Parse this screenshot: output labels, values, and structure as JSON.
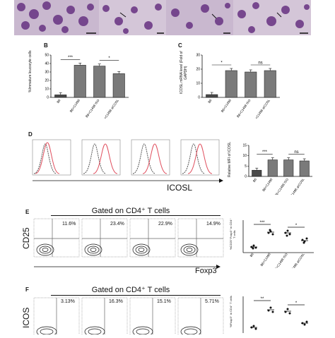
{
  "panel_letters": {
    "B": "B",
    "C": "C",
    "D": "D",
    "E": "E",
    "F": "F"
  },
  "groups": [
    "B6",
    "B6+C1498",
    "B6+C1498 ISO",
    "B6+C1498 aICOSL"
  ],
  "colors": {
    "micro_bg": "#c9b8cf",
    "micro_cell": "#6d3a86",
    "bar_dark": "#4a4a4a",
    "bar_checker": "#7a7a7a",
    "histo_grey": "#555555",
    "histo_red": "#e0505f"
  },
  "panel_B": {
    "ylabel": "%Immature leucocyte cells",
    "yticks": [
      "0",
      "10",
      "20",
      "30",
      "40",
      "50"
    ],
    "sig": [
      "***",
      "*"
    ]
  },
  "panel_C": {
    "ylabel": "ICOSL mRNA level (Fold of GAPDH)",
    "yticks": [
      "0",
      "10",
      "20",
      "30"
    ],
    "sig": [
      "*",
      "ns"
    ]
  },
  "panel_D": {
    "xlabel": "ICOSL",
    "ylabel": "Relative MFI of ICOSL",
    "yticks": [
      "0",
      "5",
      "10",
      "15"
    ],
    "sig": [
      "***",
      "ns"
    ]
  },
  "panel_E": {
    "gate": "Gated on CD4⁺ T cells",
    "ylabel": "CD25",
    "xlabel": "Foxp3",
    "percents": [
      "11.6%",
      "23.4%",
      "22.9%",
      "14.9%"
    ],
    "side_ylabel": "%CD25⁺Foxp3⁺ in CD4⁺ T cells",
    "sig": [
      "***",
      "*"
    ]
  },
  "panel_F": {
    "gate": "Gated on CD4⁺ T cells",
    "ylabel": "ICOS",
    "percents": [
      "3.13%",
      "16.3%",
      "15.1%",
      "5.71%"
    ],
    "side_ylabel": "%Foxp3⁺ in CD4⁺ T cells",
    "sig": [
      "**",
      "*"
    ]
  },
  "chart_data": [
    {
      "type": "bar",
      "panel": "B",
      "categories": [
        "B6",
        "B6+C1498",
        "B6+C1498 ISO",
        "B6+C1498 aICOSL"
      ],
      "values": [
        3,
        38,
        37,
        28
      ],
      "ylabel": "%Immature leucocyte cells",
      "ylim": [
        0,
        50
      ]
    },
    {
      "type": "bar",
      "panel": "C",
      "categories": [
        "B6",
        "B6+C1498",
        "B6+C1498 ISO",
        "B6+C1498 aICOSL"
      ],
      "values": [
        2,
        19,
        18,
        19
      ],
      "ylabel": "ICOSL mRNA level (Fold of GAPDH)",
      "ylim": [
        0,
        30
      ]
    },
    {
      "type": "bar",
      "panel": "D",
      "categories": [
        "B6",
        "B6+C1498",
        "B6+C1498 ISO",
        "B6+C1498 aICOSL"
      ],
      "values": [
        3,
        8,
        8,
        7.5
      ],
      "ylabel": "Relative MFI of ICOSL",
      "ylim": [
        0,
        15
      ]
    }
  ]
}
